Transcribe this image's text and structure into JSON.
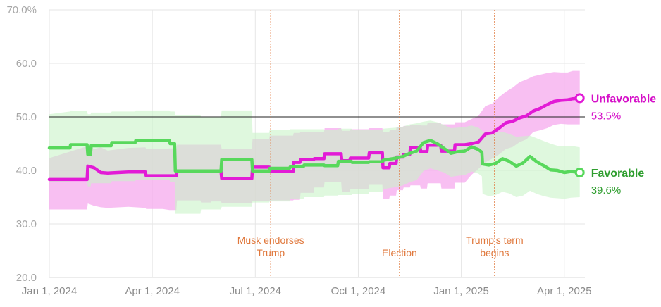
{
  "chart_data": {
    "type": "line",
    "title": "",
    "xlabel": "",
    "ylabel": "",
    "ylim": [
      20,
      70
    ],
    "reference_line": 50,
    "grid": true,
    "y_ticks": [
      {
        "value": 70,
        "label": "70.0%"
      },
      {
        "value": 60,
        "label": "60.0"
      },
      {
        "value": 50,
        "label": "50.0"
      },
      {
        "value": 40,
        "label": "40.0"
      },
      {
        "value": 30,
        "label": "30.0"
      },
      {
        "value": 20,
        "label": "20.0"
      }
    ],
    "x_ticks": [
      {
        "value": 0,
        "label": "Jan 1, 2024"
      },
      {
        "value": 3,
        "label": "Apr 1, 2024"
      },
      {
        "value": 6,
        "label": "Jul 1, 2024"
      },
      {
        "value": 9,
        "label": "Oct 1, 2024"
      },
      {
        "value": 12,
        "label": "Jan 1, 2025"
      },
      {
        "value": 15,
        "label": "Apr 1, 2025"
      }
    ],
    "xlim": [
      0,
      15.6
    ],
    "events": [
      {
        "x": 6.45,
        "lines": [
          "Musk endorses",
          "Trump"
        ]
      },
      {
        "x": 10.2,
        "lines": [
          "Election"
        ]
      },
      {
        "x": 12.97,
        "lines": [
          "Trump's term",
          "begins"
        ]
      }
    ],
    "series": [
      {
        "name": "Unfavorable",
        "value_label": "53.5%",
        "color": "#e21bd6",
        "band_color": "#f6a9ee",
        "x": [
          0,
          1.1,
          1.12,
          1.3,
          1.5,
          1.7,
          2.3,
          2.8,
          2.82,
          3.3,
          3.5,
          3.7,
          3.72,
          4.4,
          4.42,
          4.7,
          4.72,
          5.0,
          5.02,
          5.9,
          5.92,
          6.4,
          6.42,
          7.1,
          7.12,
          7.3,
          7.32,
          7.7,
          7.72,
          8.0,
          8.02,
          8.5,
          8.52,
          8.75,
          8.77,
          9.3,
          9.32,
          9.7,
          9.72,
          9.9,
          9.92,
          10.1,
          10.12,
          10.3,
          10.32,
          10.5,
          10.52,
          10.8,
          10.82,
          11.0,
          11.02,
          11.4,
          11.42,
          11.8,
          11.82,
          12.1,
          12.3,
          12.5,
          12.7,
          12.9,
          13.1,
          13.3,
          13.5,
          13.7,
          13.9,
          14.1,
          14.3,
          14.5,
          14.7,
          14.9,
          15.1,
          15.25,
          15.45
        ],
        "y": [
          38.3,
          38.3,
          40.8,
          40.5,
          39.6,
          39.5,
          39.7,
          39.7,
          39.0,
          39.0,
          39.0,
          39.0,
          39.8,
          39.8,
          39.8,
          39.8,
          39.8,
          39.8,
          38.5,
          38.5,
          40.6,
          40.6,
          39.8,
          39.8,
          41.5,
          41.5,
          42.0,
          42.0,
          42.2,
          42.2,
          43.1,
          43.1,
          41.8,
          41.8,
          42.3,
          42.3,
          43.3,
          43.3,
          40.5,
          40.5,
          41.3,
          41.3,
          42.5,
          42.5,
          43.0,
          43.0,
          44.3,
          44.3,
          43.5,
          43.5,
          44.7,
          44.7,
          43.6,
          43.6,
          44.8,
          44.8,
          45.0,
          45.3,
          46.8,
          47.0,
          47.9,
          48.9,
          49.2,
          49.8,
          50.2,
          51.1,
          51.6,
          52.3,
          52.9,
          53.1,
          53.2,
          53.4,
          53.5
        ],
        "band_hi": [
          42.3,
          44.5,
          45.0,
          44.0,
          44.3,
          43.7,
          44.2,
          44.3,
          44.0,
          44.0,
          44.1,
          44.1,
          44.8,
          44.8,
          44.8,
          44.8,
          44.8,
          44.8,
          44.0,
          44.0,
          45.8,
          45.8,
          46.5,
          46.5,
          47.0,
          47.0,
          47.2,
          47.2,
          47.1,
          47.1,
          47.9,
          47.9,
          47.4,
          47.4,
          47.7,
          47.7,
          47.9,
          47.9,
          47.2,
          47.2,
          47.6,
          47.6,
          48.1,
          48.1,
          48.3,
          48.3,
          48.5,
          48.5,
          48.4,
          48.4,
          48.9,
          48.9,
          48.6,
          48.6,
          49.0,
          49.0,
          49.6,
          50.2,
          52.0,
          52.5,
          53.7,
          54.7,
          55.5,
          56.5,
          57.0,
          57.6,
          57.9,
          58.2,
          58.4,
          58.3,
          58.3,
          58.6,
          58.6
        ],
        "band_lo": [
          32.7,
          32.7,
          33.8,
          33.4,
          33.1,
          33.0,
          33.2,
          33.0,
          32.8,
          32.8,
          32.6,
          32.6,
          34.4,
          34.4,
          34.0,
          34.0,
          34.2,
          34.2,
          33.9,
          33.9,
          34.3,
          34.3,
          34.4,
          34.4,
          34.5,
          34.5,
          35.8,
          35.8,
          36.8,
          36.8,
          37.9,
          37.9,
          36.0,
          36.0,
          36.5,
          36.5,
          37.3,
          37.3,
          34.7,
          34.7,
          35.3,
          35.3,
          36.3,
          36.3,
          36.8,
          36.8,
          37.2,
          37.2,
          36.6,
          36.6,
          37.6,
          37.6,
          36.6,
          36.6,
          37.7,
          37.7,
          39.2,
          40.3,
          41.5,
          42.2,
          43.0,
          44.0,
          44.4,
          45.3,
          45.8,
          47.2,
          47.5,
          47.9,
          48.5,
          48.7,
          48.6,
          48.6,
          48.6
        ]
      },
      {
        "name": "Favorable",
        "value_label": "39.6%",
        "color": "#58d85c",
        "band_color": "#c9f4c8",
        "x": [
          0,
          0.6,
          0.62,
          1.1,
          1.12,
          1.2,
          1.22,
          1.8,
          1.82,
          2.5,
          2.52,
          3.5,
          3.52,
          3.65,
          3.67,
          4.4,
          4.42,
          5.0,
          5.02,
          5.9,
          5.92,
          6.4,
          6.42,
          7.0,
          7.02,
          7.4,
          7.42,
          8.0,
          8.02,
          8.4,
          8.42,
          8.8,
          8.82,
          9.3,
          9.32,
          9.7,
          9.72,
          10.1,
          10.3,
          10.5,
          10.7,
          10.9,
          11.1,
          11.3,
          11.5,
          11.7,
          11.9,
          12.1,
          12.3,
          12.5,
          12.6,
          12.62,
          12.8,
          13.0,
          13.2,
          13.4,
          13.6,
          13.8,
          14.0,
          14.2,
          14.4,
          14.6,
          14.8,
          15.0,
          15.2,
          15.45
        ],
        "y": [
          44.2,
          44.2,
          44.8,
          44.8,
          43.0,
          43.0,
          44.6,
          44.6,
          45.2,
          45.2,
          45.6,
          45.6,
          45.0,
          45.0,
          39.9,
          39.9,
          39.9,
          39.9,
          42.0,
          42.0,
          39.9,
          39.9,
          40.4,
          40.4,
          40.7,
          40.7,
          41.0,
          41.0,
          40.9,
          40.9,
          41.7,
          41.7,
          41.5,
          41.5,
          41.6,
          41.6,
          41.9,
          42.3,
          42.6,
          43.2,
          43.6,
          45.2,
          45.6,
          45.0,
          44.1,
          43.2,
          43.5,
          43.6,
          44.4,
          43.9,
          43.4,
          41.2,
          41.0,
          41.3,
          42.2,
          41.7,
          40.8,
          41.4,
          42.6,
          41.6,
          40.9,
          40.1,
          40.0,
          39.6,
          39.8,
          39.6
        ],
        "band_hi": [
          50.5,
          51.0,
          51.2,
          51.1,
          50.5,
          50.5,
          50.8,
          50.8,
          51.0,
          51.0,
          51.2,
          51.2,
          51.0,
          51.0,
          50.3,
          50.3,
          50.0,
          50.0,
          51.2,
          51.2,
          47.0,
          47.0,
          47.6,
          47.6,
          47.7,
          47.7,
          47.7,
          47.7,
          47.5,
          47.5,
          47.8,
          47.8,
          47.6,
          47.6,
          47.6,
          47.6,
          47.8,
          48.0,
          48.2,
          48.6,
          48.8,
          49.1,
          49.3,
          49.0,
          48.5,
          47.9,
          48.0,
          48.1,
          48.4,
          48.0,
          47.5,
          47.2,
          47.0,
          47.0,
          47.2,
          46.8,
          46.3,
          46.4,
          46.5,
          46.0,
          45.5,
          45.0,
          44.6,
          44.5,
          44.6,
          44.3
        ],
        "band_lo": [
          37.8,
          37.8,
          38.1,
          38.1,
          37.0,
          37.0,
          37.6,
          37.6,
          38.0,
          38.0,
          38.2,
          38.2,
          37.8,
          37.8,
          31.9,
          31.9,
          32.7,
          32.7,
          33.2,
          33.2,
          34.0,
          34.0,
          34.2,
          34.2,
          34.6,
          34.6,
          35.0,
          35.0,
          35.3,
          35.3,
          35.4,
          35.4,
          35.6,
          35.6,
          36.0,
          36.0,
          36.5,
          36.9,
          37.2,
          37.8,
          38.2,
          39.9,
          40.4,
          40.0,
          39.6,
          38.8,
          39.0,
          39.1,
          39.8,
          39.4,
          38.9,
          35.6,
          35.2,
          35.4,
          36.0,
          35.7,
          35.0,
          35.3,
          36.2,
          35.6,
          35.2,
          34.9,
          34.8,
          34.7,
          34.9,
          35.0
        ]
      }
    ]
  }
}
